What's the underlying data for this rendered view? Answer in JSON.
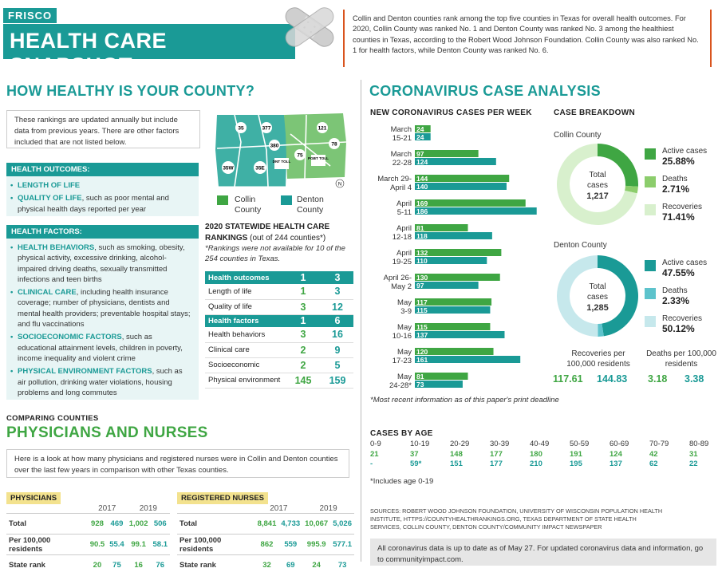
{
  "header": {
    "kicker": "FRISCO",
    "title": "HEALTH CARE SNAPSHOT",
    "intro": "Collin and Denton counties rank among the top five counties in Texas for overall health outcomes. For 2020, Collin County was ranked No. 1 and Denton County was ranked No. 3 among the healthiest counties in Texas, according to the Robert Wood Johnson Foundation. Collin County was also ranked No. 1 for health factors, while Denton County was ranked No. 6."
  },
  "colors": {
    "collin": "#3fa643",
    "denton": "#1a9a96",
    "collin_light": "#8fd08f",
    "denton_light": "#c6e8ec",
    "accent": "#d9541e"
  },
  "healthy": {
    "title": "HOW HEALTHY IS YOUR COUNTY?",
    "note": "These rankings are updated annually but include data from previous years. There are other factors included that are not listed below.",
    "outcomes_title": "HEALTH OUTCOMES:",
    "outcomes": [
      {
        "bold": "LENGTH OF LIFE",
        "text": ""
      },
      {
        "bold": "QUALITY OF LIFE",
        "text": ", such as poor mental and physical health days reported per year"
      }
    ],
    "factors_title": "HEALTH FACTORS:",
    "factors": [
      {
        "bold": "HEALTH BEHAVIORS",
        "text": ", such as smoking, obesity, physical activity, excessive drinking, alcohol-impaired driving deaths, sexually transmitted infections and teen births"
      },
      {
        "bold": "CLINICAL CARE",
        "text": ", including health insurance coverage; number of physicians, dentists and mental health providers; preventable hospital stays; and flu vaccinations"
      },
      {
        "bold": "SOCIOECONOMIC FACTORS",
        "text": ", such as educational attainment levels, children in poverty, income inequality and violent crime"
      },
      {
        "bold": "PHYSICAL ENVIRONMENT FACTORS",
        "text": ", such as air pollution, drinking water violations, housing problems and long commutes"
      }
    ],
    "map_roads": [
      "35",
      "377",
      "380",
      "121",
      "78",
      "75",
      "DNT TOLL",
      "PGBT TOLL",
      "35W",
      "35E"
    ],
    "map_north": "N",
    "legend": [
      {
        "name": "Collin County"
      },
      {
        "name": "Denton County"
      }
    ],
    "rank_title": "2020 STATEWIDE HEALTH CARE RANKINGS",
    "rank_title_suffix": "(out of 244 counties*)",
    "rank_note": "*Rankings were not available for 10 of the 254 counties in Texas.",
    "rankings": [
      {
        "label": "Health outcomes",
        "collin": "1",
        "denton": "3",
        "header": true
      },
      {
        "label": "Length of life",
        "collin": "1",
        "denton": "3",
        "header": false
      },
      {
        "label": "Quality of life",
        "collin": "3",
        "denton": "12",
        "header": false
      },
      {
        "label": "Health factors",
        "collin": "1",
        "denton": "6",
        "header": true
      },
      {
        "label": "Health behaviors",
        "collin": "3",
        "denton": "16",
        "header": false
      },
      {
        "label": "Clinical care",
        "collin": "2",
        "denton": "9",
        "header": false
      },
      {
        "label": "Socioeconomic",
        "collin": "2",
        "denton": "5",
        "header": false
      },
      {
        "label": "Physical environment",
        "collin": "145",
        "denton": "159",
        "header": false
      }
    ]
  },
  "compare": {
    "kicker": "COMPARING COUNTIES",
    "title": "PHYSICIANS AND NURSES",
    "note": "Here is a look at how many physicians and registered nurses were in Collin and Denton counties over the last few years in comparison with other Texas counties.",
    "physicians": {
      "title": "PHYSICIANS",
      "years": [
        "2017",
        "2019"
      ],
      "rows": [
        {
          "label": "Total",
          "v": [
            "928",
            "469",
            "1,002",
            "506"
          ]
        },
        {
          "label": "Per 100,000 residents",
          "v": [
            "90.5",
            "55.4",
            "99.1",
            "58.1"
          ]
        },
        {
          "label": "State rank",
          "v": [
            "20",
            "75",
            "16",
            "76"
          ]
        }
      ]
    },
    "nurses": {
      "title": "REGISTERED NURSES",
      "years": [
        "2017",
        "2019"
      ],
      "rows": [
        {
          "label": "Total",
          "v": [
            "8,841",
            "4,733",
            "10,067",
            "5,026"
          ]
        },
        {
          "label": "Per 100,000 residents",
          "v": [
            "862",
            "559",
            "995.9",
            "577.1"
          ]
        },
        {
          "label": "State rank",
          "v": [
            "32",
            "69",
            "24",
            "73"
          ]
        }
      ]
    }
  },
  "corona": {
    "title": "CORONAVIRUS CASE ANALYSIS",
    "weekly_title": "NEW CORONAVIRUS CASES PER WEEK",
    "weekly_note": "*Most recent information as of this paper's print deadline",
    "breakdown_title": "CASE BREAKDOWN",
    "collin": {
      "name": "Collin County",
      "total_label": "Total cases",
      "total": "1,217",
      "items": [
        {
          "label": "Active cases",
          "value": "25.88%"
        },
        {
          "label": "Deaths",
          "value": "2.71%"
        },
        {
          "label": "Recoveries",
          "value": "71.41%"
        }
      ]
    },
    "denton": {
      "name": "Denton County",
      "total_label": "Total cases",
      "total": "1,285",
      "items": [
        {
          "label": "Active cases",
          "value": "47.55%"
        },
        {
          "label": "Deaths",
          "value": "2.33%"
        },
        {
          "label": "Recoveries",
          "value": "50.12%"
        }
      ]
    },
    "per100k": {
      "rec_label": "Recoveries per 100,000 residents",
      "rec": [
        "117.61",
        "144.83"
      ],
      "death_label": "Deaths per 100,000 residents",
      "death": [
        "3.18",
        "3.38"
      ]
    },
    "age_title": "CASES BY AGE",
    "ages": [
      {
        "label": "0-9",
        "collin": "21",
        "denton": "-"
      },
      {
        "label": "10-19",
        "collin": "37",
        "denton": "59*"
      },
      {
        "label": "20-29",
        "collin": "148",
        "denton": "151"
      },
      {
        "label": "30-39",
        "collin": "177",
        "denton": "177"
      },
      {
        "label": "40-49",
        "collin": "180",
        "denton": "210"
      },
      {
        "label": "50-59",
        "collin": "191",
        "denton": "195"
      },
      {
        "label": "60-69",
        "collin": "124",
        "denton": "137"
      },
      {
        "label": "70-79",
        "collin": "42",
        "denton": "62"
      },
      {
        "label": "80-89",
        "collin": "31",
        "denton": "22"
      }
    ],
    "age_note": "*Includes age 0-19",
    "sources": "SOURCES: ROBERT WOOD JOHNSON FOUNDATION, UNIVERSITY OF WISCONSIN POPULATION HEALTH INSTITUTE, HTTPS://COUNTYHEALTHRANKINGS.ORG, TEXAS DEPARTMENT OF STATE HEALTH SERVICES, COLLIN COUNTY, DENTON COUNTY/COMMUNITY IMPACT NEWSPAPER",
    "footer": "All coronavirus data is up to date as of May 27. For updated coronavirus data and information, go to communityimpact.com."
  },
  "chart_data": [
    {
      "type": "bar",
      "title": "NEW CORONAVIRUS CASES PER WEEK",
      "orientation": "horizontal",
      "categories": [
        "March 15-21",
        "March 22-28",
        "March 29-April 4",
        "April 5-11",
        "April 12-18",
        "April 19-25",
        "April 26-May 2",
        "May 3-9",
        "May 10-16",
        "May 17-23",
        "May 24-28*"
      ],
      "category_lines": [
        [
          "March",
          "15-21"
        ],
        [
          "March",
          "22-28"
        ],
        [
          "March 29-",
          "April 4"
        ],
        [
          "April",
          "5-11"
        ],
        [
          "April",
          "12-18"
        ],
        [
          "April",
          "19-25"
        ],
        [
          "April 26-",
          "May 2"
        ],
        [
          "May",
          "3-9"
        ],
        [
          "May",
          "10-16"
        ],
        [
          "May",
          "17-23"
        ],
        [
          "May",
          "24-28*"
        ]
      ],
      "series": [
        {
          "name": "Collin County",
          "values": [
            24,
            97,
            144,
            169,
            81,
            132,
            130,
            117,
            115,
            120,
            81
          ]
        },
        {
          "name": "Denton County",
          "values": [
            24,
            124,
            140,
            186,
            118,
            110,
            97,
            115,
            137,
            161,
            73
          ]
        }
      ],
      "xlim": [
        0,
        190
      ]
    },
    {
      "type": "pie",
      "title": "Collin County",
      "labels": [
        "Active cases",
        "Deaths",
        "Recoveries"
      ],
      "values": [
        25.88,
        2.71,
        71.41
      ]
    },
    {
      "type": "pie",
      "title": "Denton County",
      "labels": [
        "Active cases",
        "Deaths",
        "Recoveries"
      ],
      "values": [
        47.55,
        2.33,
        50.12
      ]
    }
  ]
}
